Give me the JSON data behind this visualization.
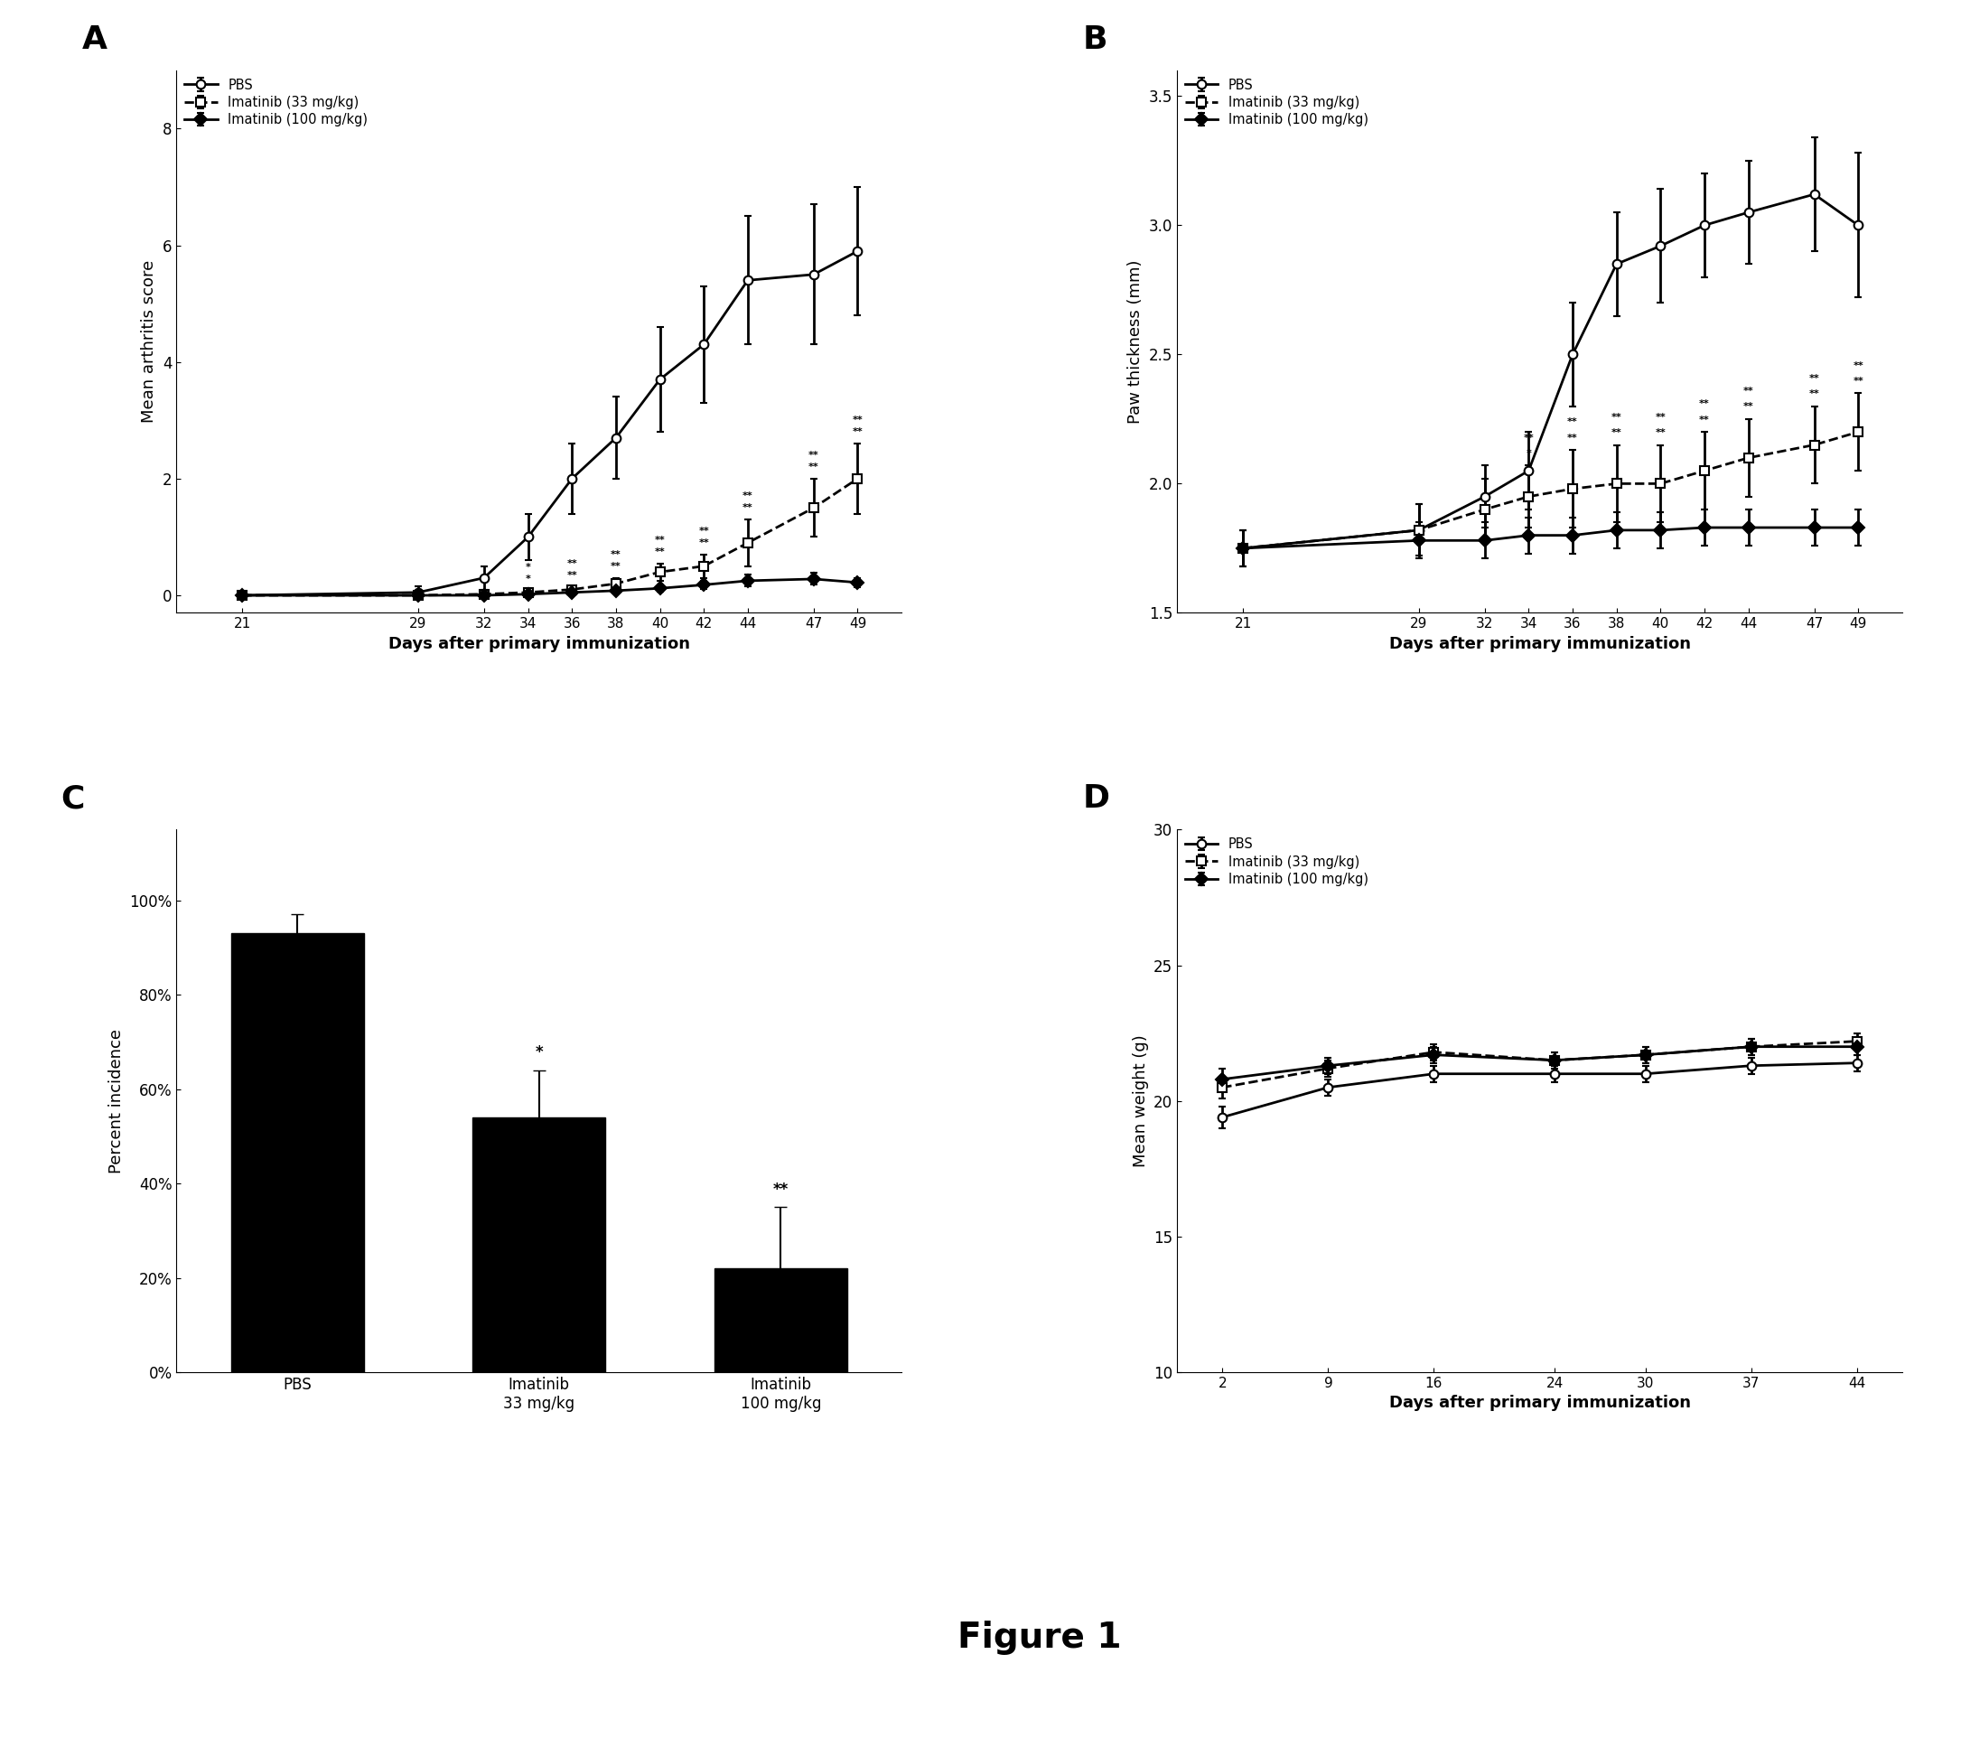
{
  "panel_A": {
    "days": [
      21,
      29,
      32,
      34,
      36,
      38,
      40,
      42,
      44,
      47,
      49
    ],
    "PBS_mean": [
      0.0,
      0.05,
      0.3,
      1.0,
      2.0,
      2.7,
      3.7,
      4.3,
      5.4,
      5.5,
      5.9
    ],
    "PBS_err": [
      0.0,
      0.1,
      0.2,
      0.4,
      0.6,
      0.7,
      0.9,
      1.0,
      1.1,
      1.2,
      1.1
    ],
    "ima33_mean": [
      0.0,
      0.0,
      0.02,
      0.05,
      0.1,
      0.2,
      0.4,
      0.5,
      0.9,
      1.5,
      2.0
    ],
    "ima33_err": [
      0.0,
      0.0,
      0.01,
      0.03,
      0.05,
      0.1,
      0.15,
      0.2,
      0.4,
      0.5,
      0.6
    ],
    "ima100_mean": [
      0.0,
      0.0,
      0.0,
      0.02,
      0.05,
      0.08,
      0.12,
      0.18,
      0.25,
      0.28,
      0.22
    ],
    "ima100_err": [
      0.0,
      0.0,
      0.0,
      0.01,
      0.02,
      0.03,
      0.05,
      0.07,
      0.1,
      0.1,
      0.08
    ],
    "ylabel": "Mean arthritis score",
    "xlabel": "Days after primary immunization",
    "ylim": [
      -0.3,
      9.0
    ],
    "yticks": [
      0,
      2,
      4,
      6,
      8
    ],
    "sig_ima33_days": [
      34,
      36,
      38,
      40,
      42,
      44,
      47,
      49
    ],
    "sig_ima33_labels": [
      "*",
      "**",
      "**",
      "**",
      "**",
      "**",
      "**",
      "**"
    ],
    "sig_ima100_days": [
      34,
      36,
      38,
      40,
      42,
      44,
      47,
      49
    ],
    "sig_ima100_labels": [
      "*",
      "**",
      "**",
      "**",
      "**",
      "**",
      "**",
      "**"
    ]
  },
  "panel_B": {
    "days": [
      21,
      29,
      32,
      34,
      36,
      38,
      40,
      42,
      44,
      47,
      49
    ],
    "PBS_mean": [
      1.75,
      1.82,
      1.95,
      2.05,
      2.5,
      2.85,
      2.92,
      3.0,
      3.05,
      3.12,
      3.0
    ],
    "PBS_err": [
      0.07,
      0.1,
      0.12,
      0.15,
      0.2,
      0.2,
      0.22,
      0.2,
      0.2,
      0.22,
      0.28
    ],
    "ima33_mean": [
      1.75,
      1.82,
      1.9,
      1.95,
      1.98,
      2.0,
      2.0,
      2.05,
      2.1,
      2.15,
      2.2
    ],
    "ima33_err": [
      0.07,
      0.1,
      0.12,
      0.12,
      0.15,
      0.15,
      0.15,
      0.15,
      0.15,
      0.15,
      0.15
    ],
    "ima100_mean": [
      1.75,
      1.78,
      1.78,
      1.8,
      1.8,
      1.82,
      1.82,
      1.83,
      1.83,
      1.83,
      1.83
    ],
    "ima100_err": [
      0.07,
      0.07,
      0.07,
      0.07,
      0.07,
      0.07,
      0.07,
      0.07,
      0.07,
      0.07,
      0.07
    ],
    "ylabel": "Paw thickness (mm)",
    "xlabel": "Days after primary immunization",
    "ylim": [
      1.5,
      3.6
    ],
    "yticks": [
      1.5,
      2.0,
      2.5,
      3.0,
      3.5
    ],
    "sig_days": [
      34,
      36,
      38,
      40,
      42,
      44,
      47,
      49
    ],
    "sig_labels_ima33": [
      "*",
      "**",
      "**",
      "**",
      "**",
      "**",
      "**",
      "**"
    ],
    "sig_labels_ima100": [
      "**",
      "**",
      "**",
      "**",
      "**",
      "**",
      "**",
      "**"
    ]
  },
  "panel_C": {
    "categories": [
      "PBS",
      "Imatinib\n33 mg/kg",
      "Imatinib\n100 mg/kg"
    ],
    "values": [
      93,
      54,
      22
    ],
    "errors": [
      4,
      10,
      13
    ],
    "bar_color": "#000000",
    "ylabel": "Percent incidence",
    "yticks": [
      0,
      20,
      40,
      60,
      80,
      100
    ],
    "yticklabels": [
      "0%",
      "20%",
      "40%",
      "60%",
      "80%",
      "100%"
    ],
    "ylim": [
      0,
      115
    ],
    "sig": [
      "",
      "*",
      "**"
    ]
  },
  "panel_D": {
    "days": [
      2,
      9,
      16,
      24,
      30,
      37,
      44
    ],
    "PBS_mean": [
      19.4,
      20.5,
      21.0,
      21.0,
      21.0,
      21.3,
      21.4
    ],
    "PBS_err": [
      0.4,
      0.3,
      0.3,
      0.3,
      0.3,
      0.3,
      0.3
    ],
    "ima33_mean": [
      20.5,
      21.2,
      21.8,
      21.5,
      21.7,
      22.0,
      22.2
    ],
    "ima33_err": [
      0.4,
      0.3,
      0.3,
      0.3,
      0.3,
      0.3,
      0.3
    ],
    "ima100_mean": [
      20.8,
      21.3,
      21.7,
      21.5,
      21.7,
      22.0,
      22.0
    ],
    "ima100_err": [
      0.4,
      0.3,
      0.3,
      0.3,
      0.3,
      0.3,
      0.3
    ],
    "ylabel": "Mean weight (g)",
    "xlabel": "Days after primary immunization",
    "ylim": [
      10,
      30
    ],
    "yticks": [
      10,
      15,
      20,
      25,
      30
    ]
  },
  "legend_labels": [
    "PBS",
    "Imatinib (33 mg/kg)",
    "Imatinib (100 mg/kg)"
  ],
  "figure_title": "Figure 1",
  "background_color": "#ffffff"
}
